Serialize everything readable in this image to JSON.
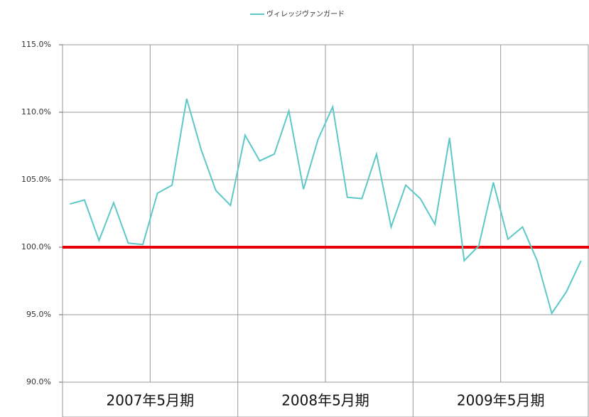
{
  "chart_data": {
    "type": "line",
    "categories": [
      null,
      null,
      null,
      null,
      null,
      null,
      null,
      null,
      null,
      null,
      null,
      null,
      null,
      null,
      null,
      null,
      null,
      null,
      null,
      null,
      null,
      null,
      null,
      null,
      null,
      null,
      null,
      null,
      null,
      null,
      null,
      null,
      null,
      null,
      null,
      null
    ],
    "x_groups": [
      "2007年5月期",
      "2008年5月期",
      "2009年5月期"
    ],
    "series": [
      {
        "name": "ヴィレッジヴァンガード",
        "color": "#5cc8c8",
        "values": [
          103.2,
          103.5,
          100.5,
          103.3,
          100.3,
          100.2,
          104.0,
          104.6,
          111.0,
          107.2,
          104.2,
          103.1,
          108.3,
          106.4,
          106.9,
          110.1,
          104.3,
          108.0,
          110.4,
          103.7,
          103.6,
          106.9,
          101.5,
          104.6,
          103.6,
          101.7,
          108.1,
          99.0,
          100.1,
          104.8,
          100.6,
          101.5,
          99.0,
          95.1,
          96.7,
          99.0
        ]
      }
    ],
    "ylim": [
      90,
      115
    ],
    "yticks": [
      {
        "value": 90,
        "label": "90.0%"
      },
      {
        "value": 95,
        "label": "95.0%"
      },
      {
        "value": 100,
        "label": "100.0%"
      },
      {
        "value": 105,
        "label": "105.0%"
      },
      {
        "value": 110,
        "label": "110.0%"
      },
      {
        "value": 115,
        "label": "115.0%"
      }
    ],
    "grid": true,
    "reference_line": {
      "value": 100,
      "color": "#e8000b"
    },
    "legend": "top"
  }
}
